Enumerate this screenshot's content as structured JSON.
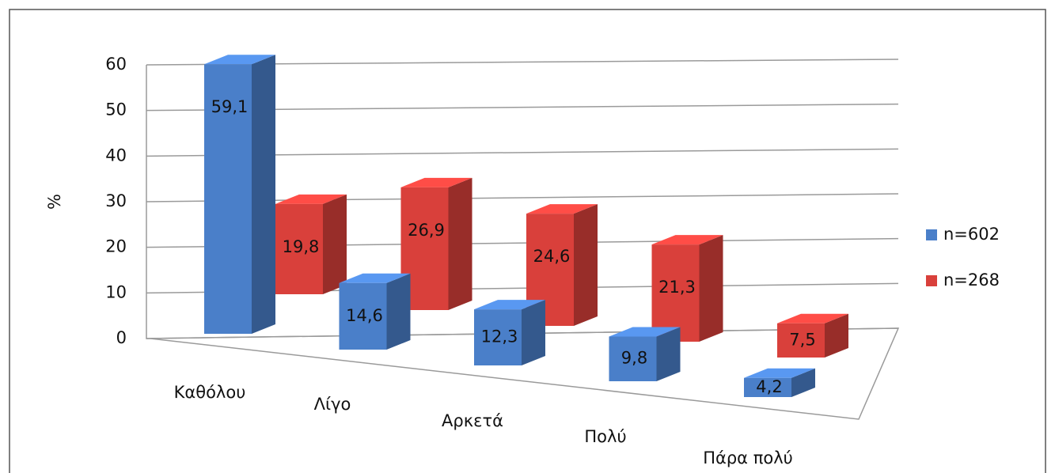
{
  "chart_data": {
    "type": "bar3d",
    "y_label": "%",
    "categories": [
      "Καθόλου",
      "Λίγο",
      "Αρκετά",
      "Πολύ",
      "Πάρα πολύ"
    ],
    "series": [
      {
        "name": "n=602",
        "color": "#4a7fc9",
        "values": [
          59.1,
          14.6,
          12.3,
          9.8,
          4.2
        ],
        "value_labels": [
          "59,1",
          "14,6",
          "12,3",
          "9,8",
          "4,2"
        ]
      },
      {
        "name": "n=268",
        "color": "#d9403b",
        "values": [
          19.8,
          26.9,
          24.6,
          21.3,
          7.5
        ],
        "value_labels": [
          "19,8",
          "26,9",
          "24,6",
          "21,3",
          "7,5"
        ]
      }
    ],
    "ylim": [
      0,
      60
    ],
    "yticks": [
      0,
      10,
      20,
      30,
      40,
      50,
      60
    ],
    "grid": true,
    "legend": "right"
  }
}
